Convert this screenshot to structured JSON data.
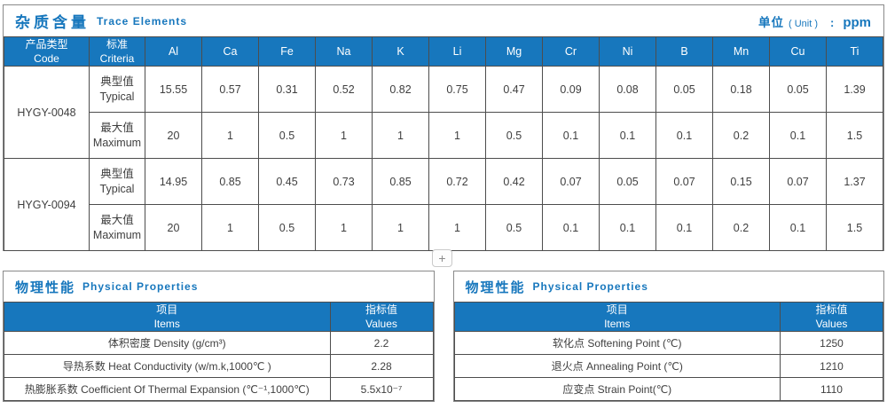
{
  "colors": {
    "accent_blue": "#1777bd",
    "header_text": "#ffffff",
    "cell_border": "#4d4d4d"
  },
  "add_button": {
    "label": "+"
  },
  "trace_section": {
    "title_zh": "杂质含量",
    "title_en": "Trace Elements",
    "unit": {
      "zh": "单位",
      "en": "( Unit )",
      "colon": ":",
      "value": "ppm"
    },
    "header": {
      "code_zh": "产品类型",
      "code_en": "Code",
      "criteria_zh": "标准",
      "criteria_en": "Criteria",
      "elements": [
        "Al",
        "Ca",
        "Fe",
        "Na",
        "K",
        "Li",
        "Mg",
        "Cr",
        "Ni",
        "B",
        "Mn",
        "Cu",
        "Ti"
      ]
    },
    "products": [
      {
        "code": "HYGY-0048",
        "rows": [
          {
            "criteria_zh": "典型值",
            "criteria_en": "Typical",
            "values": [
              "15.55",
              "0.57",
              "0.31",
              "0.52",
              "0.82",
              "0.75",
              "0.47",
              "0.09",
              "0.08",
              "0.05",
              "0.18",
              "0.05",
              "1.39"
            ]
          },
          {
            "criteria_zh": "最大值",
            "criteria_en": "Maximum",
            "values": [
              "20",
              "1",
              "0.5",
              "1",
              "1",
              "1",
              "0.5",
              "0.1",
              "0.1",
              "0.1",
              "0.2",
              "0.1",
              "1.5"
            ]
          }
        ]
      },
      {
        "code": "HYGY-0094",
        "rows": [
          {
            "criteria_zh": "典型值",
            "criteria_en": "Typical",
            "values": [
              "14.95",
              "0.85",
              "0.45",
              "0.73",
              "0.85",
              "0.72",
              "0.42",
              "0.07",
              "0.05",
              "0.07",
              "0.15",
              "0.07",
              "1.37"
            ]
          },
          {
            "criteria_zh": "最大值",
            "criteria_en": "Maximum",
            "values": [
              "20",
              "1",
              "0.5",
              "1",
              "1",
              "1",
              "0.5",
              "0.1",
              "0.1",
              "0.1",
              "0.2",
              "0.1",
              "1.5"
            ]
          }
        ]
      }
    ]
  },
  "physical_left": {
    "title_zh": "物理性能",
    "title_en": "Physical Properties",
    "header": {
      "items_zh": "项目",
      "items_en": "Items",
      "values_zh": "指标值",
      "values_en": "Values"
    },
    "rows": [
      {
        "item": "体积密度 Density (g/cm³)",
        "value": "2.2"
      },
      {
        "item": "导热系数 Heat Conductivity (w/m.k,1000℃ )",
        "value": "2.28"
      },
      {
        "item": "热膨胀系数 Coefficient Of Thermal Expansion (℃⁻¹,1000℃)",
        "value": "5.5x10⁻⁷"
      }
    ]
  },
  "physical_right": {
    "title_zh": "物理性能",
    "title_en": "Physical Properties",
    "header": {
      "items_zh": "项目",
      "items_en": "Items",
      "values_zh": "指标值",
      "values_en": "Values"
    },
    "rows": [
      {
        "item": "软化点 Softening Point (℃)",
        "value": "1250"
      },
      {
        "item": "退火点 Annealing Point (℃)",
        "value": "1210"
      },
      {
        "item": "应变点 Strain Point(℃)",
        "value": "1110"
      }
    ]
  }
}
